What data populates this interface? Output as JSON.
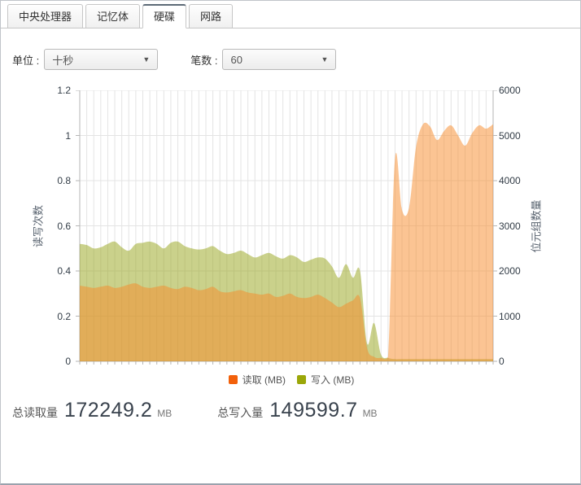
{
  "tabs": [
    {
      "id": "cpu",
      "label": "中央处理器",
      "active": false
    },
    {
      "id": "memory",
      "label": "记忆体",
      "active": false
    },
    {
      "id": "disk",
      "label": "硬碟",
      "active": true
    },
    {
      "id": "network",
      "label": "网路",
      "active": false
    }
  ],
  "controls": {
    "unit_label": "单位 :",
    "unit_value": "十秒",
    "count_label": "笔数 :",
    "count_value": "60",
    "dropdown_arrow": "▼"
  },
  "chart_data": {
    "type": "area",
    "title": "",
    "ylabel_left": "读写次数",
    "ylabel_right": "位元组数量",
    "ylim_left": [
      0,
      1.2
    ],
    "ylim_right": [
      0,
      6000
    ],
    "left_ticks": [
      "1.2",
      "1",
      "0.8",
      "0.6",
      "0.4",
      "0.2",
      "0"
    ],
    "right_ticks": [
      "6000",
      "5000",
      "4000",
      "3000",
      "2000",
      "1000",
      "0"
    ],
    "x_points": 60,
    "x_interval": "十秒",
    "grid": true,
    "legend_position": "bottom",
    "note": "values are in right-axis units (MB); left axis = value/5000",
    "series": [
      {
        "name": "写入 (MB)",
        "color": "#9ba709",
        "fill": "#96a317",
        "opacity": 0.5,
        "values": [
          2600,
          2575,
          2500,
          2525,
          2600,
          2650,
          2525,
          2450,
          2600,
          2625,
          2650,
          2600,
          2500,
          2625,
          2650,
          2550,
          2500,
          2475,
          2500,
          2550,
          2450,
          2375,
          2400,
          2450,
          2375,
          2300,
          2350,
          2400,
          2325,
          2275,
          2350,
          2300,
          2200,
          2250,
          2300,
          2275,
          2100,
          1850,
          2150,
          1850,
          2000,
          400,
          850,
          150,
          75,
          50,
          50,
          50,
          50,
          50,
          50,
          50,
          50,
          50,
          50,
          50,
          50,
          50,
          50,
          50
        ]
      },
      {
        "name": "读取 (MB)",
        "color": "#f2600a",
        "fill": "#f78a28",
        "opacity": 0.5,
        "values": [
          1675,
          1650,
          1625,
          1650,
          1675,
          1625,
          1650,
          1700,
          1725,
          1650,
          1625,
          1650,
          1675,
          1625,
          1600,
          1650,
          1625,
          1575,
          1600,
          1650,
          1550,
          1525,
          1550,
          1575,
          1525,
          1500,
          1475,
          1500,
          1425,
          1450,
          1500,
          1425,
          1400,
          1425,
          1475,
          1400,
          1300,
          1200,
          1275,
          1350,
          1400,
          300,
          100,
          75,
          100,
          4500,
          3350,
          3400,
          4750,
          5250,
          5200,
          4900,
          5100,
          5225,
          5000,
          4775,
          5050,
          5225,
          5150,
          5250
        ]
      }
    ],
    "legend_order": [
      "读取 (MB)",
      "写入 (MB)"
    ],
    "grid_color": "#e4e4e4",
    "axis_color": "#b6b6b6"
  },
  "totals": {
    "read_label": "总读取量",
    "read_value": "172249.2",
    "read_unit": "MB",
    "write_label": "总写入量",
    "write_value": "149599.7",
    "write_unit": "MB"
  }
}
